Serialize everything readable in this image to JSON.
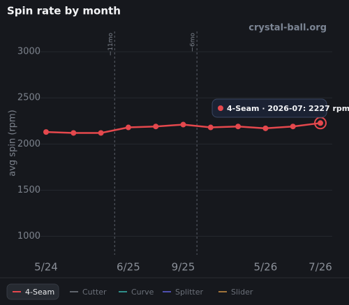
{
  "chart_data": {
    "type": "line",
    "title": "Spin rate by month",
    "watermark": "crystal-ball.org",
    "y_label": "avg spin (rpm)",
    "categories": [
      "5/24",
      null,
      null,
      "6/25",
      null,
      "9/25",
      null,
      null,
      "5/26",
      null,
      "7/26"
    ],
    "series": [
      {
        "name": "4-Seam",
        "color": "#e5484d",
        "values": [
          2130,
          2120,
          2120,
          2180,
          2190,
          2210,
          2180,
          2190,
          2170,
          2190,
          2227
        ]
      }
    ],
    "hidden_series": [
      {
        "name": "Cutter",
        "color": "#5f646c"
      },
      {
        "name": "Curve",
        "color": "#2f8f8a"
      },
      {
        "name": "Splitter",
        "color": "#4f4fb0"
      },
      {
        "name": "Slider",
        "color": "#a0743a"
      }
    ],
    "ylim": [
      800,
      3220
    ],
    "yticks": [
      1000,
      1500,
      2000,
      2500,
      3000
    ],
    "grid": true,
    "markers": [
      {
        "x": 2.5,
        "label": "−11mo"
      },
      {
        "x": 5.5,
        "label": "−6mo"
      }
    ],
    "tooltip": {
      "index": 10,
      "text": "4-Seam · 2026-07: 2227 rpm"
    }
  }
}
